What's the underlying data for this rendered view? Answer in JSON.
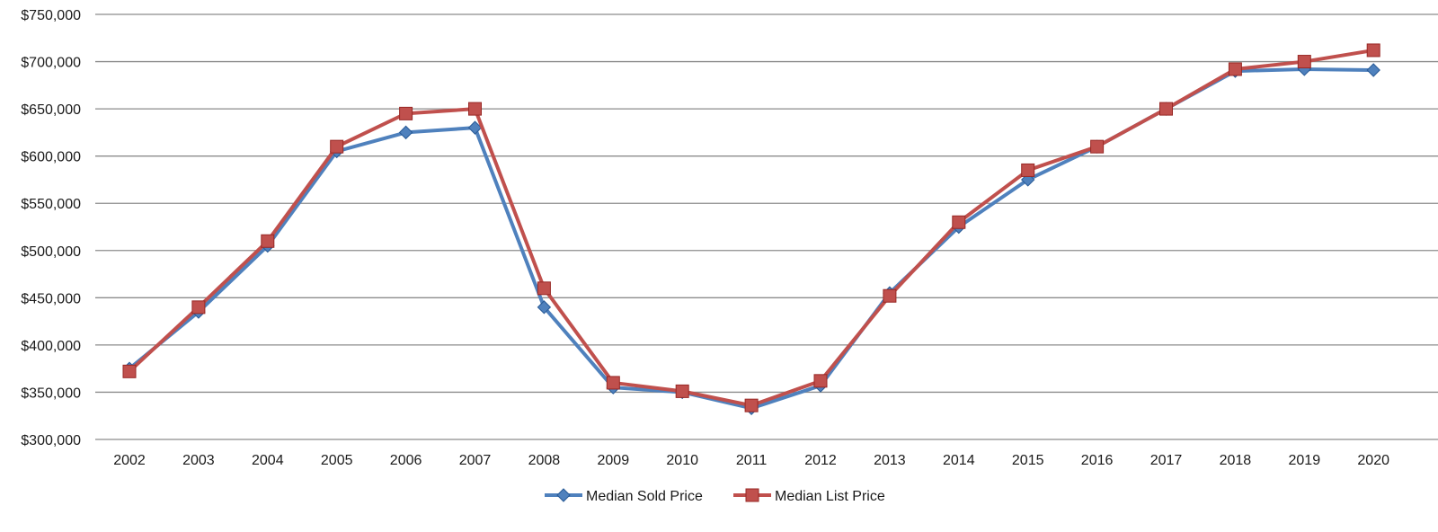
{
  "chart_data": {
    "type": "line",
    "title": "",
    "xlabel": "",
    "ylabel": "",
    "categories": [
      "2002",
      "2003",
      "2004",
      "2005",
      "2006",
      "2007",
      "2008",
      "2009",
      "2010",
      "2011",
      "2012",
      "2013",
      "2014",
      "2015",
      "2016",
      "2017",
      "2018",
      "2019",
      "2020"
    ],
    "ylim": [
      300000,
      750000
    ],
    "yticks": [
      300000,
      350000,
      400000,
      450000,
      500000,
      550000,
      600000,
      650000,
      700000,
      750000
    ],
    "ytick_labels": [
      "$300,000",
      "$350,000",
      "$400,000",
      "$450,000",
      "$500,000",
      "$550,000",
      "$600,000",
      "$650,000",
      "$700,000",
      "$750,000"
    ],
    "grid": true,
    "legend_position": "bottom",
    "series": [
      {
        "name": "Median Sold Price",
        "color": "#4f81bd",
        "marker": "diamond",
        "values": [
          375000,
          435000,
          505000,
          605000,
          625000,
          630000,
          440000,
          355000,
          350000,
          333000,
          357000,
          455000,
          525000,
          575000,
          610000,
          650000,
          690000,
          692000,
          691000
        ]
      },
      {
        "name": "Median List Price",
        "color": "#c0504d",
        "marker": "square",
        "values": [
          372000,
          440000,
          510000,
          610000,
          645000,
          650000,
          460000,
          360000,
          351000,
          336000,
          362000,
          452000,
          530000,
          585000,
          610000,
          650000,
          692000,
          700000,
          712000
        ]
      }
    ]
  }
}
